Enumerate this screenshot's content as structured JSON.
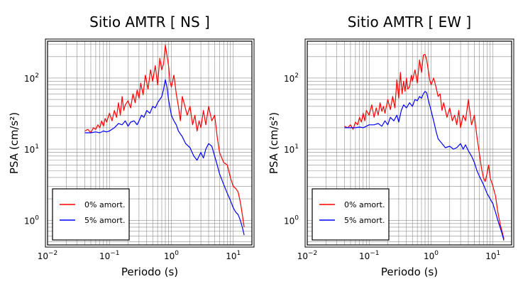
{
  "chart_data": [
    {
      "type": "line",
      "title": "Sitio AMTR [ NS ]",
      "xlabel": "Periodo (s)",
      "ylabel": "PSA (cm/s²)",
      "x_scale": "log",
      "y_scale": "log",
      "xlim": [
        0.01,
        20
      ],
      "ylim": [
        0.45,
        330
      ],
      "grid": true,
      "legend_position": "bottom-left",
      "xticks": [
        {
          "base": "10",
          "exp": "−2",
          "value": 0.01
        },
        {
          "base": "10",
          "exp": "−1",
          "value": 0.1
        },
        {
          "base": "10",
          "exp": "0",
          "value": 1
        },
        {
          "base": "10",
          "exp": "1",
          "value": 10
        }
      ],
      "yticks": [
        {
          "base": "10",
          "exp": "0",
          "value": 1
        },
        {
          "base": "10",
          "exp": "1",
          "value": 10
        },
        {
          "base": "10",
          "exp": "2",
          "value": 100
        }
      ],
      "series": [
        {
          "name": "0% amort.",
          "color": "#ff0000",
          "x": [
            0.04,
            0.045,
            0.05,
            0.055,
            0.06,
            0.065,
            0.07,
            0.075,
            0.08,
            0.085,
            0.09,
            0.1,
            0.11,
            0.12,
            0.13,
            0.14,
            0.15,
            0.16,
            0.17,
            0.18,
            0.2,
            0.22,
            0.24,
            0.26,
            0.28,
            0.3,
            0.32,
            0.35,
            0.38,
            0.42,
            0.46,
            0.5,
            0.55,
            0.6,
            0.65,
            0.7,
            0.75,
            0.8,
            0.85,
            0.9,
            0.95,
            1.0,
            1.1,
            1.2,
            1.3,
            1.4,
            1.5,
            1.6,
            1.8,
            2.0,
            2.2,
            2.4,
            2.6,
            2.8,
            3.0,
            3.3,
            3.6,
            4.0,
            4.5,
            5.0,
            5.5,
            6.0,
            7.0,
            8.0,
            9.0,
            10.0,
            11.0,
            12.0,
            13.0,
            14.0,
            15.0
          ],
          "y": [
            18,
            19,
            17,
            20,
            19,
            22,
            20,
            25,
            21,
            27,
            24,
            32,
            25,
            35,
            28,
            45,
            30,
            55,
            35,
            42,
            48,
            38,
            60,
            45,
            68,
            52,
            85,
            58,
            110,
            70,
            130,
            90,
            150,
            80,
            190,
            130,
            160,
            290,
            210,
            150,
            90,
            75,
            110,
            60,
            40,
            25,
            55,
            45,
            30,
            40,
            22,
            30,
            18,
            25,
            20,
            35,
            22,
            40,
            25,
            30,
            15,
            9,
            6.5,
            6,
            4,
            3,
            2.8,
            2.5,
            1.8,
            1.2,
            0.8
          ]
        },
        {
          "name": "5% amort.",
          "color": "#0000ff",
          "x": [
            0.04,
            0.05,
            0.06,
            0.07,
            0.08,
            0.09,
            0.1,
            0.12,
            0.14,
            0.16,
            0.18,
            0.2,
            0.22,
            0.25,
            0.28,
            0.3,
            0.33,
            0.36,
            0.4,
            0.45,
            0.5,
            0.55,
            0.6,
            0.65,
            0.7,
            0.75,
            0.8,
            0.85,
            0.9,
            1.0,
            1.1,
            1.2,
            1.3,
            1.5,
            1.7,
            2.0,
            2.3,
            2.6,
            3.0,
            3.3,
            3.6,
            4.0,
            4.5,
            5.0,
            5.5,
            6.0,
            7.0,
            8.0,
            9.0,
            10.0,
            11.0,
            12.0,
            13.0,
            14.0,
            15.0
          ],
          "y": [
            17,
            17,
            17.5,
            17,
            18,
            17.5,
            18,
            20,
            23,
            22,
            25,
            21,
            24,
            25,
            22,
            25,
            30,
            28,
            35,
            32,
            40,
            38,
            45,
            50,
            55,
            70,
            95,
            75,
            50,
            30,
            25,
            22,
            18,
            15,
            12,
            10.5,
            8,
            7,
            9,
            7.5,
            10,
            12,
            11,
            8,
            6,
            4.5,
            3.2,
            2.4,
            1.9,
            1.5,
            1.3,
            1.2,
            1.0,
            0.8,
            0.62
          ]
        }
      ]
    },
    {
      "type": "line",
      "title": "Sitio AMTR [ EW ]",
      "xlabel": "Periodo (s)",
      "ylabel": "PSA (cm/s²)",
      "x_scale": "log",
      "y_scale": "log",
      "xlim": [
        0.01,
        20
      ],
      "ylim": [
        0.45,
        330
      ],
      "grid": true,
      "legend_position": "bottom-left",
      "xticks": [
        {
          "base": "10",
          "exp": "−2",
          "value": 0.01
        },
        {
          "base": "10",
          "exp": "−1",
          "value": 0.1
        },
        {
          "base": "10",
          "exp": "0",
          "value": 1
        },
        {
          "base": "10",
          "exp": "1",
          "value": 10
        }
      ],
      "yticks": [
        {
          "base": "10",
          "exp": "0",
          "value": 1
        },
        {
          "base": "10",
          "exp": "1",
          "value": 10
        },
        {
          "base": "10",
          "exp": "2",
          "value": 100
        }
      ],
      "series": [
        {
          "name": "0% amort.",
          "color": "#ff0000",
          "x": [
            0.04,
            0.045,
            0.05,
            0.055,
            0.06,
            0.065,
            0.07,
            0.075,
            0.08,
            0.085,
            0.09,
            0.1,
            0.11,
            0.12,
            0.13,
            0.14,
            0.15,
            0.16,
            0.17,
            0.18,
            0.2,
            0.22,
            0.24,
            0.26,
            0.28,
            0.3,
            0.32,
            0.34,
            0.36,
            0.38,
            0.4,
            0.42,
            0.45,
            0.48,
            0.5,
            0.55,
            0.6,
            0.65,
            0.7,
            0.75,
            0.8,
            0.85,
            0.9,
            0.95,
            1.0,
            1.1,
            1.2,
            1.3,
            1.4,
            1.5,
            1.6,
            1.8,
            2.0,
            2.2,
            2.4,
            2.6,
            2.8,
            3.0,
            3.3,
            3.6,
            4.0,
            4.5,
            5.0,
            5.5,
            6.0,
            6.5,
            7.0,
            7.5,
            8.0,
            8.5,
            9.0,
            10.0,
            11.0,
            12.0,
            13.0,
            14.0,
            15.0
          ],
          "y": [
            21,
            20,
            22,
            19,
            24,
            22,
            28,
            24,
            32,
            25,
            35,
            30,
            42,
            28,
            38,
            30,
            45,
            34,
            40,
            32,
            50,
            36,
            55,
            38,
            95,
            52,
            120,
            60,
            90,
            65,
            100,
            70,
            75,
            110,
            90,
            130,
            85,
            180,
            120,
            210,
            215,
            180,
            130,
            95,
            80,
            100,
            75,
            55,
            60,
            35,
            45,
            28,
            38,
            25,
            30,
            22,
            35,
            20,
            30,
            25,
            50,
            22,
            30,
            15,
            9,
            5.5,
            4,
            3.5,
            4.5,
            6,
            4,
            3,
            2.2,
            1.3,
            0.9,
            0.7,
            0.55
          ]
        },
        {
          "name": "5% amort.",
          "color": "#0000ff",
          "x": [
            0.04,
            0.05,
            0.06,
            0.07,
            0.08,
            0.09,
            0.1,
            0.12,
            0.14,
            0.16,
            0.18,
            0.2,
            0.22,
            0.25,
            0.28,
            0.3,
            0.33,
            0.36,
            0.4,
            0.45,
            0.5,
            0.55,
            0.6,
            0.65,
            0.7,
            0.75,
            0.8,
            0.85,
            0.9,
            1.0,
            1.1,
            1.2,
            1.3,
            1.5,
            1.7,
            2.0,
            2.3,
            2.6,
            3.0,
            3.3,
            3.6,
            4.0,
            4.5,
            5.0,
            5.5,
            6.0,
            7.0,
            8.0,
            9.0,
            10.0,
            11.0,
            12.0,
            13.0,
            14.0,
            15.0
          ],
          "y": [
            20,
            20,
            20,
            20.5,
            20,
            21,
            22,
            22,
            23,
            21,
            25,
            22,
            28,
            25,
            30,
            24,
            35,
            42,
            38,
            45,
            40,
            50,
            48,
            55,
            52,
            60,
            65,
            62,
            50,
            35,
            25,
            18,
            14,
            12,
            10.5,
            11,
            10,
            10.5,
            12,
            10,
            11.5,
            9.5,
            8,
            6.5,
            5,
            4.2,
            3.2,
            2.4,
            2.0,
            1.7,
            1.3,
            1.0,
            0.8,
            0.65,
            0.52
          ]
        }
      ]
    }
  ]
}
